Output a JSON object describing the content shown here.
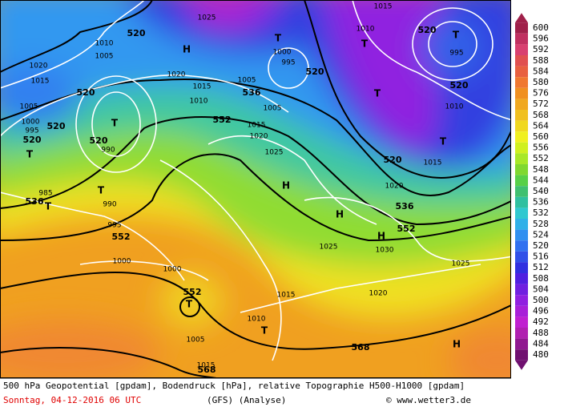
{
  "caption": {
    "line1": "500 hPa Geopotential [gpdam], Bodendruck [hPa], relative Topographie H500-H1000 [gpdam]",
    "date": "Sonntag, 04-12-2016  06 UTC",
    "model": "(GFS)  (Analyse)",
    "credit": "© www.wetter3.de"
  },
  "legend": {
    "labels": [
      "600",
      "596",
      "592",
      "588",
      "584",
      "580",
      "576",
      "572",
      "568",
      "564",
      "560",
      "556",
      "552",
      "548",
      "544",
      "540",
      "536",
      "532",
      "528",
      "524",
      "520",
      "516",
      "512",
      "508",
      "504",
      "500",
      "496",
      "492",
      "488",
      "484",
      "480"
    ],
    "colors": [
      "#a0204a",
      "#c03060",
      "#d84070",
      "#e05050",
      "#e86040",
      "#f07830",
      "#f09020",
      "#f0a820",
      "#f0c020",
      "#f0d820",
      "#f0f020",
      "#d0f020",
      "#a8e828",
      "#80d830",
      "#58d048",
      "#40c070",
      "#30c0a0",
      "#30c8d0",
      "#30b0e8",
      "#3090f0",
      "#3070f0",
      "#3050e8",
      "#3030e0",
      "#5020e0",
      "#7020e0",
      "#9020e0",
      "#a820d8",
      "#c020d0",
      "#b020b0",
      "#901890",
      "#701070"
    ]
  },
  "map_labels": [
    "520",
    "H",
    "1025",
    "T",
    "1000",
    "995",
    "520",
    "536",
    "1015",
    "1010",
    "1005",
    "552",
    "1015",
    "1020",
    "1025",
    "T",
    "1015",
    "T",
    "520",
    "T",
    "995",
    "520",
    "1010",
    "T",
    "1015",
    "520",
    "1020",
    "536",
    "552",
    "H",
    "H",
    "1030",
    "1025",
    "1020",
    "1025",
    "568",
    "H",
    "520",
    "1005",
    "1000",
    "995",
    "520",
    "T",
    "520",
    "T",
    "520",
    "990",
    "T",
    "985",
    "536",
    "T",
    "990",
    "995",
    "552",
    "1000",
    "1000",
    "552",
    "T",
    "1015",
    "1010",
    "T",
    "1005",
    "1015",
    "568",
    "H",
    "1020",
    "1015",
    "1010",
    "1005",
    "1020",
    "1010",
    "1005"
  ]
}
